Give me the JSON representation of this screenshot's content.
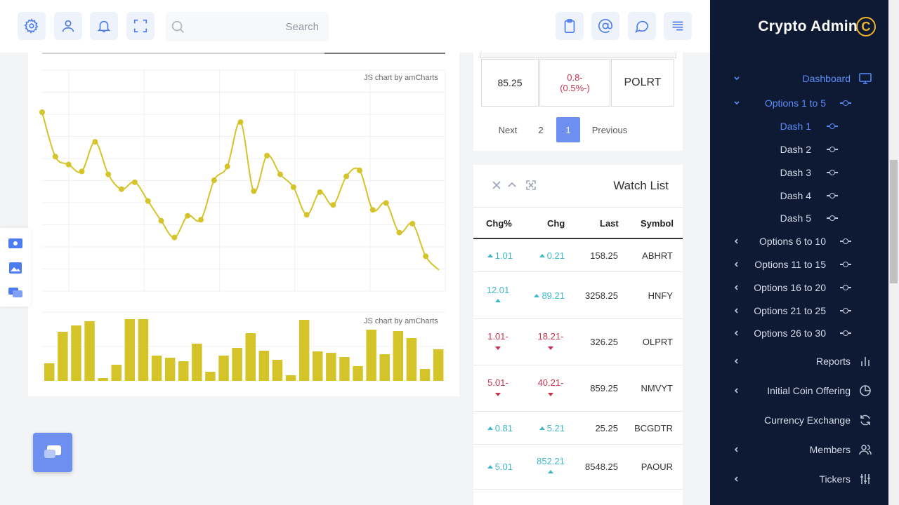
{
  "header": {
    "search_placeholder": "Search"
  },
  "chart_credit_top": "JS chart by amCharts",
  "chart_credit_bottom": "JS chart by amCharts",
  "chart_data": [
    {
      "type": "line",
      "title": "",
      "color": "#d4c42a",
      "x": [
        1,
        2,
        3,
        4,
        5,
        6,
        7,
        8,
        9,
        10,
        11,
        12,
        13,
        14,
        15,
        16,
        17,
        18,
        19,
        20,
        21,
        22,
        23,
        24,
        25,
        26,
        27,
        28,
        29,
        30,
        31
      ],
      "values": [
        160,
        115,
        107,
        100,
        130,
        97,
        82,
        89,
        70,
        50,
        33,
        55,
        51,
        91,
        105,
        150,
        80,
        116,
        97,
        84,
        56,
        79,
        66,
        95,
        101,
        61,
        68,
        38,
        47,
        14,
        0
      ],
      "note_axis": "y tick labels are cropped at left edge"
    },
    {
      "type": "bar",
      "title": "",
      "color": "#d4c42a",
      "values": [
        25,
        70,
        79,
        85,
        4,
        23,
        88,
        88,
        36,
        33,
        28,
        53,
        13,
        36,
        47,
        68,
        43,
        30,
        8,
        87,
        42,
        40,
        34,
        21,
        73,
        38,
        71,
        61,
        17,
        45
      ]
    }
  ],
  "pager": {
    "row": {
      "last": "85.25",
      "chg": "0.8-\n(0.5%-)",
      "symbol": "POLRT"
    },
    "items": [
      "Next",
      "2",
      "1",
      "Previous"
    ]
  },
  "watchlist": {
    "title": "Watch List",
    "columns": [
      "Chg%",
      "Chg",
      "Last",
      "Symbol"
    ],
    "rows": [
      {
        "pct": "1.01",
        "chg": "0.21",
        "last": "158.25",
        "symbol": "ABHRT",
        "dir": "up"
      },
      {
        "pct": "12.01",
        "chg": "89.21",
        "last": "3258.25",
        "symbol": "HNFY",
        "dir": "up"
      },
      {
        "pct": "1.01-",
        "chg": "18.21-",
        "last": "326.25",
        "symbol": "OLPRT",
        "dir": "down"
      },
      {
        "pct": "5.01-",
        "chg": "40.21-",
        "last": "859.25",
        "symbol": "NMVYT",
        "dir": "down"
      },
      {
        "pct": "0.81",
        "chg": "5.21",
        "last": "25.25",
        "symbol": "BCGDTR",
        "dir": "up"
      },
      {
        "pct": "5.01",
        "chg": "852.21",
        "last": "8548.25",
        "symbol": "PAOUR",
        "dir": "up"
      }
    ]
  },
  "sidebar": {
    "brand": "Crypto Admin",
    "brand_coin": "C",
    "items": [
      {
        "label": "Dashboard",
        "active": true
      },
      {
        "label": "Options 1 to 5",
        "active": true
      },
      {
        "label": "Dash 1",
        "active": true
      },
      {
        "label": "Dash 2"
      },
      {
        "label": "Dash 3"
      },
      {
        "label": "Dash 4"
      },
      {
        "label": "Dash 5"
      },
      {
        "label": "Options 6 to 10"
      },
      {
        "label": "Options 11 to 15"
      },
      {
        "label": "Options 16 to 20"
      },
      {
        "label": "Options 21 to 25"
      },
      {
        "label": "Options 26 to 30"
      },
      {
        "label": "Reports"
      },
      {
        "label": "Initial Coin Offering"
      },
      {
        "label": "Currency Exchange"
      },
      {
        "label": "Members"
      },
      {
        "label": "Tickers"
      }
    ]
  }
}
